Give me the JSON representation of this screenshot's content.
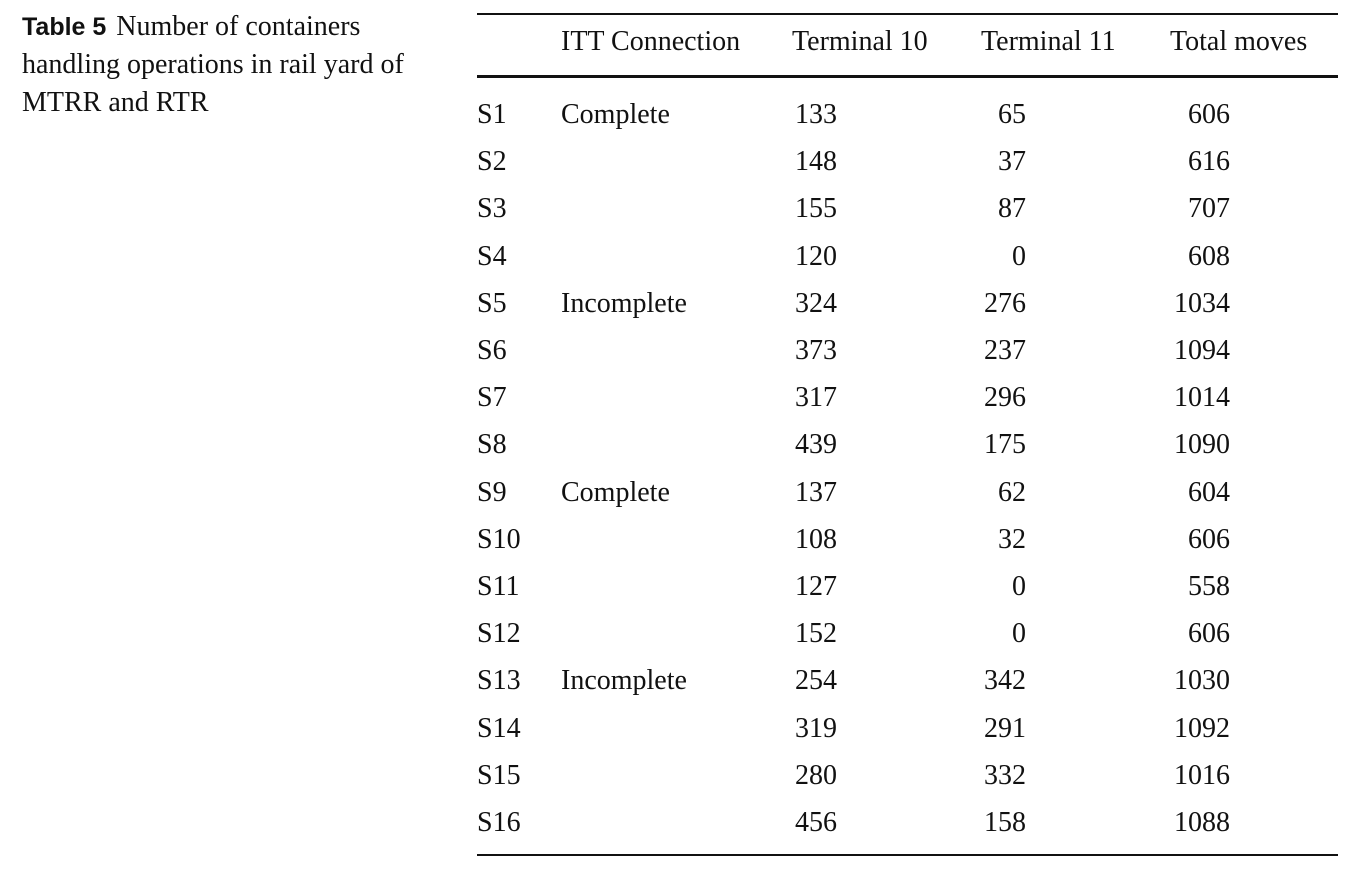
{
  "caption": {
    "label": "Table 5",
    "text": "Number of containers handling operations in rail yard of MTRR and RTR"
  },
  "table": {
    "header": [
      "ITT Connection",
      "Terminal 10",
      "Terminal 11",
      "Total moves"
    ],
    "rows": [
      [
        "S1",
        "Complete",
        133,
        65,
        606
      ],
      [
        "S2",
        null,
        148,
        37,
        616
      ],
      [
        "S3",
        null,
        155,
        87,
        707
      ],
      [
        "S4",
        null,
        120,
        0,
        608
      ],
      [
        "S5",
        "Incomplete",
        324,
        276,
        1034
      ],
      [
        "S6",
        null,
        373,
        237,
        1094
      ],
      [
        "S7",
        null,
        317,
        296,
        1014
      ],
      [
        "S8",
        null,
        439,
        175,
        1090
      ],
      [
        "S9",
        "Complete",
        137,
        62,
        604
      ],
      [
        "S10",
        null,
        108,
        32,
        606
      ],
      [
        "S11",
        null,
        127,
        0,
        558
      ],
      [
        "S12",
        null,
        152,
        0,
        606
      ],
      [
        "S13",
        "Incomplete",
        254,
        342,
        1030
      ],
      [
        "S14",
        null,
        319,
        291,
        1092
      ],
      [
        "S15",
        null,
        280,
        332,
        1016
      ],
      [
        "S16",
        null,
        456,
        158,
        1088
      ]
    ]
  }
}
